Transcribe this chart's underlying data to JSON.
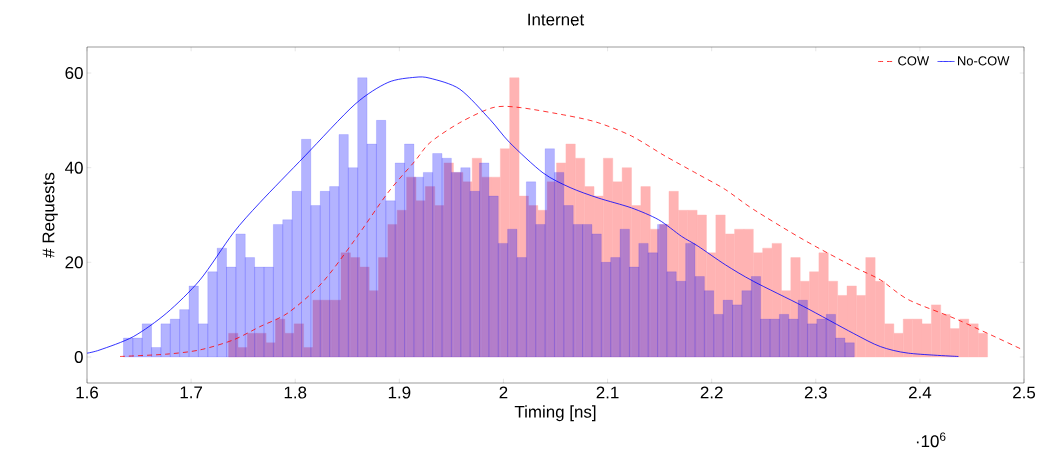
{
  "chart_data": {
    "type": "histogram",
    "title": "Internet",
    "xlabel": "Timing [ns]",
    "ylabel": "# Requests",
    "annotations": [
      "·10$^{6}$"
    ],
    "xlim": [
      1.6,
      2.5
    ],
    "ylim": [
      -5.5,
      65.5
    ],
    "xticks": [
      1.6,
      1.7,
      1.8,
      1.9,
      2,
      2.1,
      2.2,
      2.3,
      2.4,
      2.5
    ],
    "yticks": [
      0,
      20,
      40,
      60
    ],
    "legend": "top right",
    "series": [
      {
        "color": "#ffb3b3",
        "bins": [
          1.736,
          1.745,
          1.754,
          1.763,
          1.772,
          1.781,
          1.79,
          1.799,
          1.808,
          1.817,
          1.826,
          1.835,
          1.844,
          1.853,
          1.862,
          1.871,
          1.88,
          1.889,
          1.898,
          1.907,
          1.916,
          1.925,
          1.934,
          1.943,
          1.952,
          1.961,
          1.97,
          1.979,
          1.988,
          1.997,
          2.006,
          2.015,
          2.024,
          2.033,
          2.042,
          2.051,
          2.06,
          2.069,
          2.078,
          2.087,
          2.096,
          2.105,
          2.114,
          2.123,
          2.132,
          2.141,
          2.15,
          2.159,
          2.168,
          2.177,
          2.186,
          2.195,
          2.204,
          2.213,
          2.222,
          2.231,
          2.24,
          2.249,
          2.258,
          2.267,
          2.276,
          2.285,
          2.294,
          2.303,
          2.312,
          2.321,
          2.33,
          2.339,
          2.348,
          2.357,
          2.366,
          2.375,
          2.384,
          2.393,
          2.402,
          2.411,
          2.42,
          2.429,
          2.438,
          2.447,
          2.456,
          2.465
        ],
        "values": [
          5,
          2,
          5,
          5,
          3,
          8,
          5,
          7,
          2,
          12,
          12,
          12,
          22,
          21,
          19,
          14,
          21,
          28,
          31,
          38,
          33,
          36,
          32,
          41,
          39,
          37,
          42,
          38,
          38,
          44,
          59,
          34,
          32,
          31,
          37,
          41,
          45,
          42,
          36,
          34,
          42,
          37,
          40,
          32,
          36,
          27,
          28,
          35,
          31,
          31,
          30,
          22,
          30,
          26,
          27,
          27,
          22,
          23,
          24,
          14,
          21,
          16,
          18,
          22,
          16,
          13,
          15,
          13,
          21,
          16,
          7,
          5,
          8,
          8,
          7,
          11,
          9,
          6,
          8,
          7,
          5
        ]
      },
      {
        "color": "#b3b3ff",
        "bins": [
          1.635,
          1.644,
          1.653,
          1.662,
          1.671,
          1.68,
          1.689,
          1.698,
          1.707,
          1.716,
          1.725,
          1.734,
          1.743,
          1.752,
          1.761,
          1.77,
          1.779,
          1.788,
          1.797,
          1.806,
          1.815,
          1.824,
          1.833,
          1.842,
          1.851,
          1.86,
          1.869,
          1.878,
          1.887,
          1.896,
          1.905,
          1.914,
          1.923,
          1.932,
          1.941,
          1.95,
          1.959,
          1.968,
          1.977,
          1.986,
          1.995,
          2.004,
          2.013,
          2.022,
          2.031,
          2.04,
          2.049,
          2.058,
          2.067,
          2.076,
          2.085,
          2.094,
          2.103,
          2.112,
          2.121,
          2.13,
          2.139,
          2.148,
          2.157,
          2.166,
          2.175,
          2.184,
          2.193,
          2.202,
          2.211,
          2.22,
          2.229,
          2.238,
          2.247,
          2.256,
          2.265,
          2.274,
          2.283,
          2.292,
          2.301,
          2.31,
          2.319,
          2.328,
          2.337
        ],
        "values": [
          4,
          4,
          7,
          2,
          7,
          8,
          10,
          15,
          7,
          18,
          23,
          19,
          26,
          21,
          19,
          19,
          28,
          29,
          35,
          46,
          32,
          35,
          36,
          47,
          40,
          59,
          45,
          50,
          33,
          41,
          45,
          38,
          39,
          43,
          42,
          39,
          40,
          35,
          41,
          34,
          24,
          27,
          21,
          37,
          28,
          44,
          39,
          32,
          28,
          28,
          26,
          20,
          21,
          27,
          19,
          24,
          22,
          28,
          18,
          16,
          24,
          17,
          14,
          9,
          12,
          11,
          14,
          17,
          8,
          8,
          9,
          8,
          12,
          7,
          8,
          9,
          4,
          3
        ]
      },
      {
        "type": "line",
        "name": "COW",
        "color": "#ff0000",
        "line_style": "dashed",
        "x": [
          1.6317,
          1.6766,
          1.7086,
          1.7405,
          1.766,
          1.793,
          1.8255,
          1.8574,
          1.889,
          1.915,
          1.9295,
          1.958,
          1.99,
          2.016,
          2.064,
          2.091,
          2.123,
          2.155,
          2.187,
          2.213,
          2.24,
          2.288,
          2.336,
          2.362,
          2.389,
          2.437,
          2.498
        ],
        "values": [
          0.1,
          0.6,
          1.5,
          3.6,
          6.4,
          9.3,
          15.6,
          24.8,
          34.7,
          41.4,
          45.3,
          49.5,
          52.7,
          52.7,
          50.9,
          49.5,
          46.7,
          42.5,
          38.6,
          35.4,
          31.2,
          24.8,
          19.1,
          16.3,
          12.1,
          7.8,
          1.6
        ]
      },
      {
        "type": "line",
        "name": "No-COW",
        "color": "#0000ff",
        "line_style": "solid",
        "x": [
          1.6,
          1.6125,
          1.6445,
          1.6766,
          1.7086,
          1.7405,
          1.766,
          1.8094,
          1.8574,
          1.889,
          1.915,
          1.9295,
          1.958,
          1.987,
          2.006,
          2.038,
          2.064,
          2.091,
          2.123,
          2.149,
          2.171,
          2.187,
          2.213,
          2.24,
          2.288,
          2.336,
          2.362,
          2.389,
          2.437
        ],
        "values": [
          0.8,
          1.5,
          4.3,
          9.3,
          16.3,
          26.2,
          32.6,
          42.5,
          53.4,
          58,
          59.1,
          58.9,
          56.6,
          50.2,
          45.3,
          38.9,
          35.8,
          33.6,
          31.5,
          29,
          25.5,
          23.4,
          19.5,
          16,
          10.7,
          5,
          2.2,
          0.8,
          0.1
        ]
      }
    ]
  }
}
